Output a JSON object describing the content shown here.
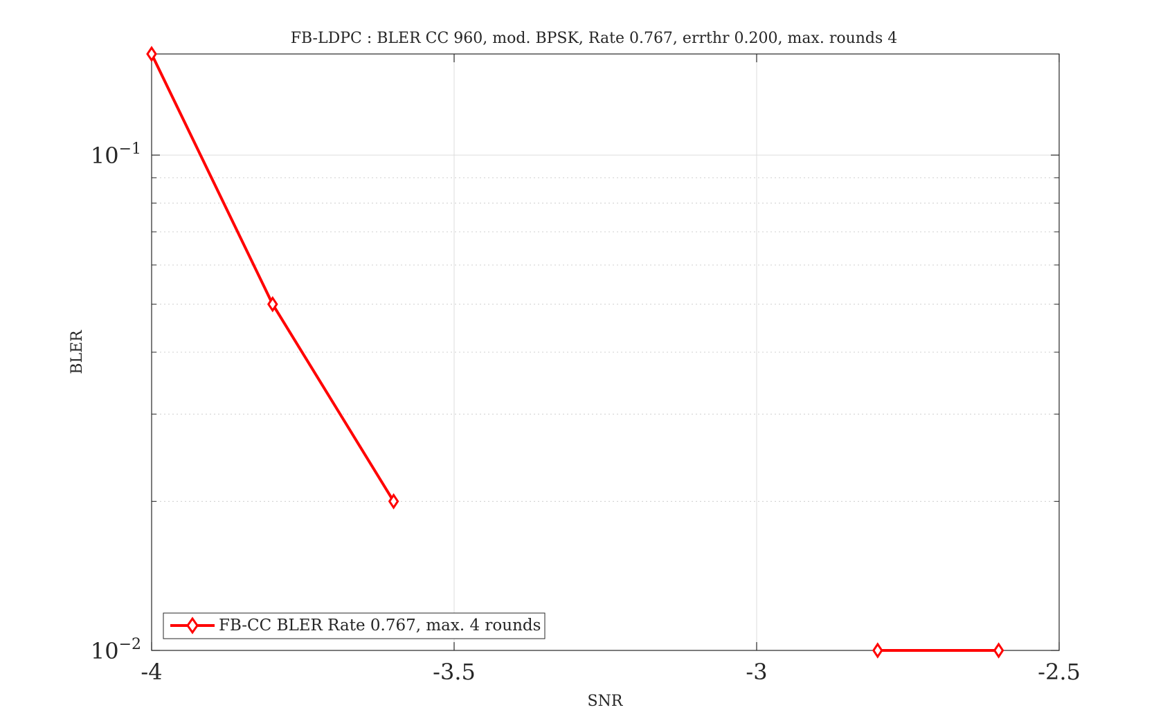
{
  "chart_data": {
    "type": "line",
    "title": "FB-LDPC : BLER CC 960, mod. BPSK, Rate 0.767, errthr 0.200, max. rounds 4",
    "xlabel": "SNR",
    "ylabel": "BLER",
    "xlim": [
      -4,
      -2.5
    ],
    "ylim": [
      0.01,
      0.16
    ],
    "yscale": "log",
    "grid": true,
    "legend_location": "bottom-left",
    "x_ticks": [
      {
        "value": -4,
        "label": "-4"
      },
      {
        "value": -3.5,
        "label": "-3.5"
      },
      {
        "value": -3,
        "label": "-3"
      },
      {
        "value": -2.5,
        "label": "-2.5"
      }
    ],
    "y_ticks": [
      {
        "value": 0.1,
        "base": "10",
        "exp": "−1"
      },
      {
        "value": 0.01,
        "base": "10",
        "exp": "−2"
      }
    ],
    "series": [
      {
        "name": "FB-CC BLER Rate 0.767, max. 4 rounds",
        "color": "#ff0000",
        "marker": "diamond",
        "segments": [
          [
            [
              -4.0,
              0.16
            ],
            [
              -3.8,
              0.05
            ],
            [
              -3.6,
              0.02
            ]
          ],
          [
            [
              -2.8,
              0.01
            ],
            [
              -2.6,
              0.01
            ]
          ]
        ]
      }
    ]
  }
}
